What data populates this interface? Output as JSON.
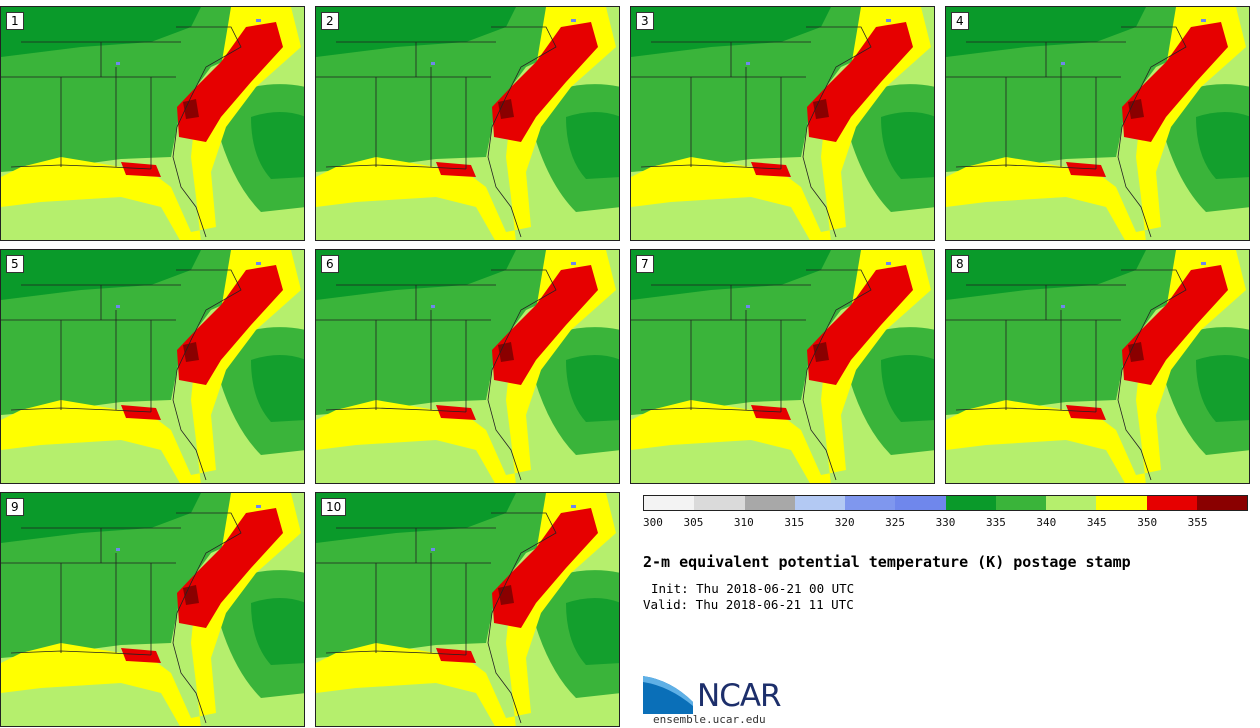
{
  "panels": [
    {
      "label": "1"
    },
    {
      "label": "2"
    },
    {
      "label": "3"
    },
    {
      "label": "4"
    },
    {
      "label": "5"
    },
    {
      "label": "6"
    },
    {
      "label": "7"
    },
    {
      "label": "8"
    },
    {
      "label": "9"
    },
    {
      "label": "10"
    }
  ],
  "legend": {
    "colors": [
      "#f3f3f3",
      "#dadada",
      "#a8a8a8",
      "#b3c9f3",
      "#7f97ee",
      "#6f87ec",
      "#0a9a2a",
      "#3ab43a",
      "#b5ef6d",
      "#ffff00",
      "#e60000",
      "#8a0000"
    ],
    "ticks": [
      "300",
      "305",
      "310",
      "315",
      "320",
      "325",
      "330",
      "335",
      "340",
      "345",
      "350",
      "355"
    ]
  },
  "title": "2-m equivalent potential temperature (K) postage stamp",
  "init": "Init: Thu 2018-06-21 00 UTC",
  "valid": "Valid: Thu 2018-06-21 11 UTC",
  "logo_text": "NCAR",
  "site": "ensemble.ucar.edu",
  "map_colors": {
    "dark_green": "#0a9a2a",
    "green": "#3ab43a",
    "light_green": "#b5ef6d",
    "yellow": "#ffff00",
    "red": "#e60000",
    "dark_red": "#8a0000",
    "blue": "#6f87ec"
  }
}
